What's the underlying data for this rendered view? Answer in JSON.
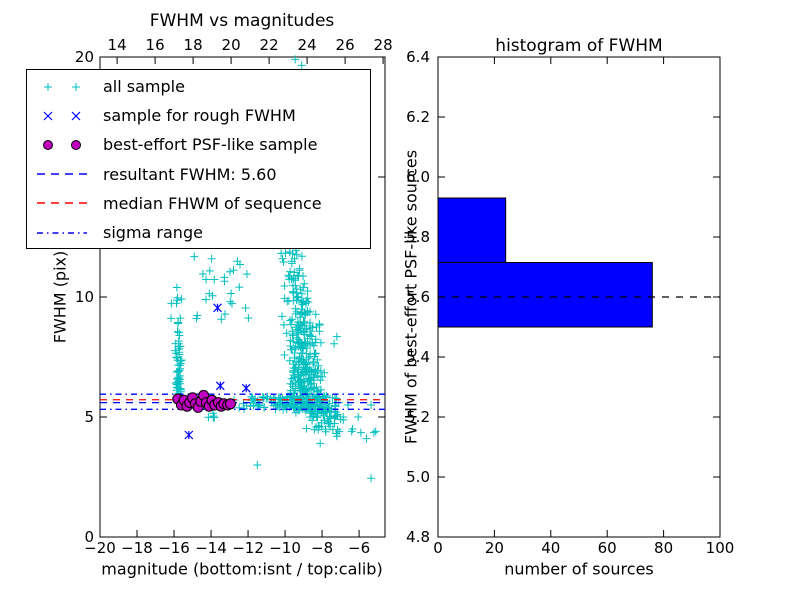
{
  "figure": {
    "background": "#ffffff"
  },
  "colors": {
    "all_sample": "#00bfbf",
    "rough_sample": "#0000ff",
    "psf_sample": "#bf00bf",
    "resultant_line": "#0000ff",
    "median_line": "#ff0000",
    "sigma_line": "#0000ff",
    "hist_bar": "#0000ff",
    "hist_dashed": "#000000",
    "frame": "#000000"
  },
  "chart_data": [
    {
      "id": "fwhm_vs_magnitudes",
      "type": "scatter",
      "title": "FWHM vs magnitudes",
      "xlabel": "magnitude (bottom:isnt / top:calib)",
      "ylabel": "FWHM (pix)",
      "xlim": [
        -20,
        -4.6
      ],
      "ylim": [
        0,
        20
      ],
      "xticks": [
        -20,
        -18,
        -16,
        -14,
        -12,
        -10,
        -8,
        -6
      ],
      "yticks": [
        0,
        5,
        10,
        15,
        20
      ],
      "top_axis": {
        "xlim": [
          13.1,
          28.1
        ],
        "ticks": [
          14,
          16,
          18,
          20,
          22,
          24,
          26,
          28
        ]
      },
      "grid": false,
      "legend_position": "upper left",
      "legend": {
        "items": [
          {
            "label": "all sample",
            "marker": "points-plus",
            "color": "#00bfbf"
          },
          {
            "label": "sample for rough FWHM",
            "marker": "points-x",
            "color": "#0000ff"
          },
          {
            "label": "best-effort PSF-like sample",
            "marker": "points-dot",
            "color": "#bf00bf"
          },
          {
            "label": "resultant FWHM: 5.60",
            "marker": "dashed",
            "color": "#0000ff"
          },
          {
            "label": "median FHWM of sequence",
            "marker": "dashed",
            "color": "#ff0000"
          },
          {
            "label": "sigma range",
            "marker": "dashdot",
            "color": "#0000ff"
          }
        ]
      },
      "hlines": [
        {
          "name": "sigma range upper",
          "y": 5.95,
          "style": "dashdot",
          "color": "#0000ff"
        },
        {
          "name": "median FHWM of sequence",
          "y": 5.72,
          "style": "dashed",
          "color": "#ff0000"
        },
        {
          "name": "resultant FWHM: 5.60",
          "y": 5.6,
          "style": "dashed",
          "color": "#0000ff"
        },
        {
          "name": "sigma range lower",
          "y": 5.32,
          "style": "dashdot",
          "color": "#0000ff"
        }
      ],
      "series": [
        {
          "name": "all sample",
          "marker": "plus",
          "color": "#00bfbf",
          "points": [
            [
              -9.45,
              19.9
            ],
            [
              -9.1,
              19.65
            ],
            [
              -11.5,
              3.0
            ],
            [
              -5.35,
              2.45
            ],
            [
              -5.6,
              4.1
            ],
            [
              -5.2,
              4.35
            ],
            [
              -6.35,
              4.5
            ],
            [
              -7.2,
              4.2
            ],
            [
              -6.05,
              5.0
            ],
            [
              -5.35,
              5.5
            ],
            [
              -7.1,
              5.6
            ],
            [
              -6.6,
              5.5
            ],
            [
              -7.2,
              8.35
            ],
            [
              -7.35,
              8.05
            ],
            [
              -7.0,
              4.9
            ],
            [
              -6.4,
              4.4
            ],
            [
              -5.9,
              4.35
            ],
            [
              -8.1,
              3.9
            ],
            [
              -5.1,
              4.4
            ]
          ],
          "clusters": [
            {
              "x": [
                -10.3,
                -8.9
              ],
              "y": [
                11.0,
                13.0
              ],
              "n": 25
            },
            {
              "x": [
                -10.4,
                -8.3
              ],
              "y": [
                9.0,
                11.0
              ],
              "n": 55
            },
            {
              "x": [
                -10.2,
                -8.0
              ],
              "y": [
                7.0,
                9.0
              ],
              "n": 115
            },
            {
              "x": [
                -9.9,
                -7.8
              ],
              "y": [
                5.9,
                7.0
              ],
              "n": 95
            },
            {
              "x": [
                -10.0,
                -7.0
              ],
              "y": [
                5.15,
                5.9
              ],
              "n": 90
            },
            {
              "x": [
                -9.2,
                -6.6
              ],
              "y": [
                4.3,
                5.15
              ],
              "n": 40
            },
            {
              "x": [
                -9.8,
                -8.8
              ],
              "y": [
                13.0,
                16.5
              ],
              "n": 6
            },
            {
              "x": [
                -13.4,
                -7.0
              ],
              "y": [
                5.3,
                5.85
              ],
              "n": 110
            },
            {
              "x": [
                -15.95,
                -15.55
              ],
              "y": [
                5.7,
                8.8
              ],
              "n": 55
            },
            {
              "x": [
                -16.3,
                -15.2
              ],
              "y": [
                8.8,
                10.9
              ],
              "n": 10
            },
            {
              "x": [
                -15.3,
                -11.5
              ],
              "y": [
                9.0,
                11.8
              ],
              "n": 26
            },
            {
              "x": [
                -14.5,
                -13.3
              ],
              "y": [
                4.9,
                5.2
              ],
              "n": 5
            }
          ]
        },
        {
          "name": "sample for rough FWHM",
          "marker": "x",
          "color": "#0000ff",
          "points": [
            [
              -13.65,
              9.55
            ],
            [
              -13.5,
              6.3
            ],
            [
              -12.1,
              6.2
            ],
            [
              -15.2,
              4.25
            ]
          ]
        },
        {
          "name": "best-effort PSF-like sample",
          "marker": "circle",
          "color": "#bf00bf",
          "points": [
            [
              -15.8,
              5.75
            ],
            [
              -15.6,
              5.5
            ],
            [
              -15.45,
              5.7
            ],
            [
              -15.3,
              5.45
            ],
            [
              -15.15,
              5.6
            ],
            [
              -15.0,
              5.8
            ],
            [
              -14.85,
              5.55
            ],
            [
              -14.7,
              5.4
            ],
            [
              -14.55,
              5.65
            ],
            [
              -14.4,
              5.9
            ],
            [
              -14.25,
              5.6
            ],
            [
              -14.1,
              5.45
            ],
            [
              -13.95,
              5.7
            ],
            [
              -13.8,
              5.5
            ],
            [
              -13.6,
              5.6
            ],
            [
              -13.45,
              5.45
            ],
            [
              -13.3,
              5.55
            ],
            [
              -13.1,
              5.5
            ],
            [
              -12.95,
              5.55
            ]
          ]
        }
      ]
    },
    {
      "id": "histogram_of_fwhm",
      "type": "bar",
      "orientation": "horizontal",
      "title": "histogram of FWHM",
      "xlabel": "number of sources",
      "ylabel": "FWHM of best-effort PSF-like sources",
      "xlim": [
        0,
        100
      ],
      "ylim": [
        4.8,
        6.4
      ],
      "xticks": [
        0,
        20,
        40,
        60,
        80,
        100
      ],
      "yticks": [
        4.8,
        5.0,
        5.2,
        5.4,
        5.6,
        5.8,
        6.0,
        6.2,
        6.4
      ],
      "grid": false,
      "bar_color": "#0000ff",
      "bars": [
        {
          "from": 5.5,
          "to": 5.715,
          "count": 76
        },
        {
          "from": 5.715,
          "to": 5.93,
          "count": 24
        }
      ],
      "dashed_line": {
        "y": 5.6,
        "color": "#000000",
        "label": "resultant FWHM"
      }
    }
  ]
}
